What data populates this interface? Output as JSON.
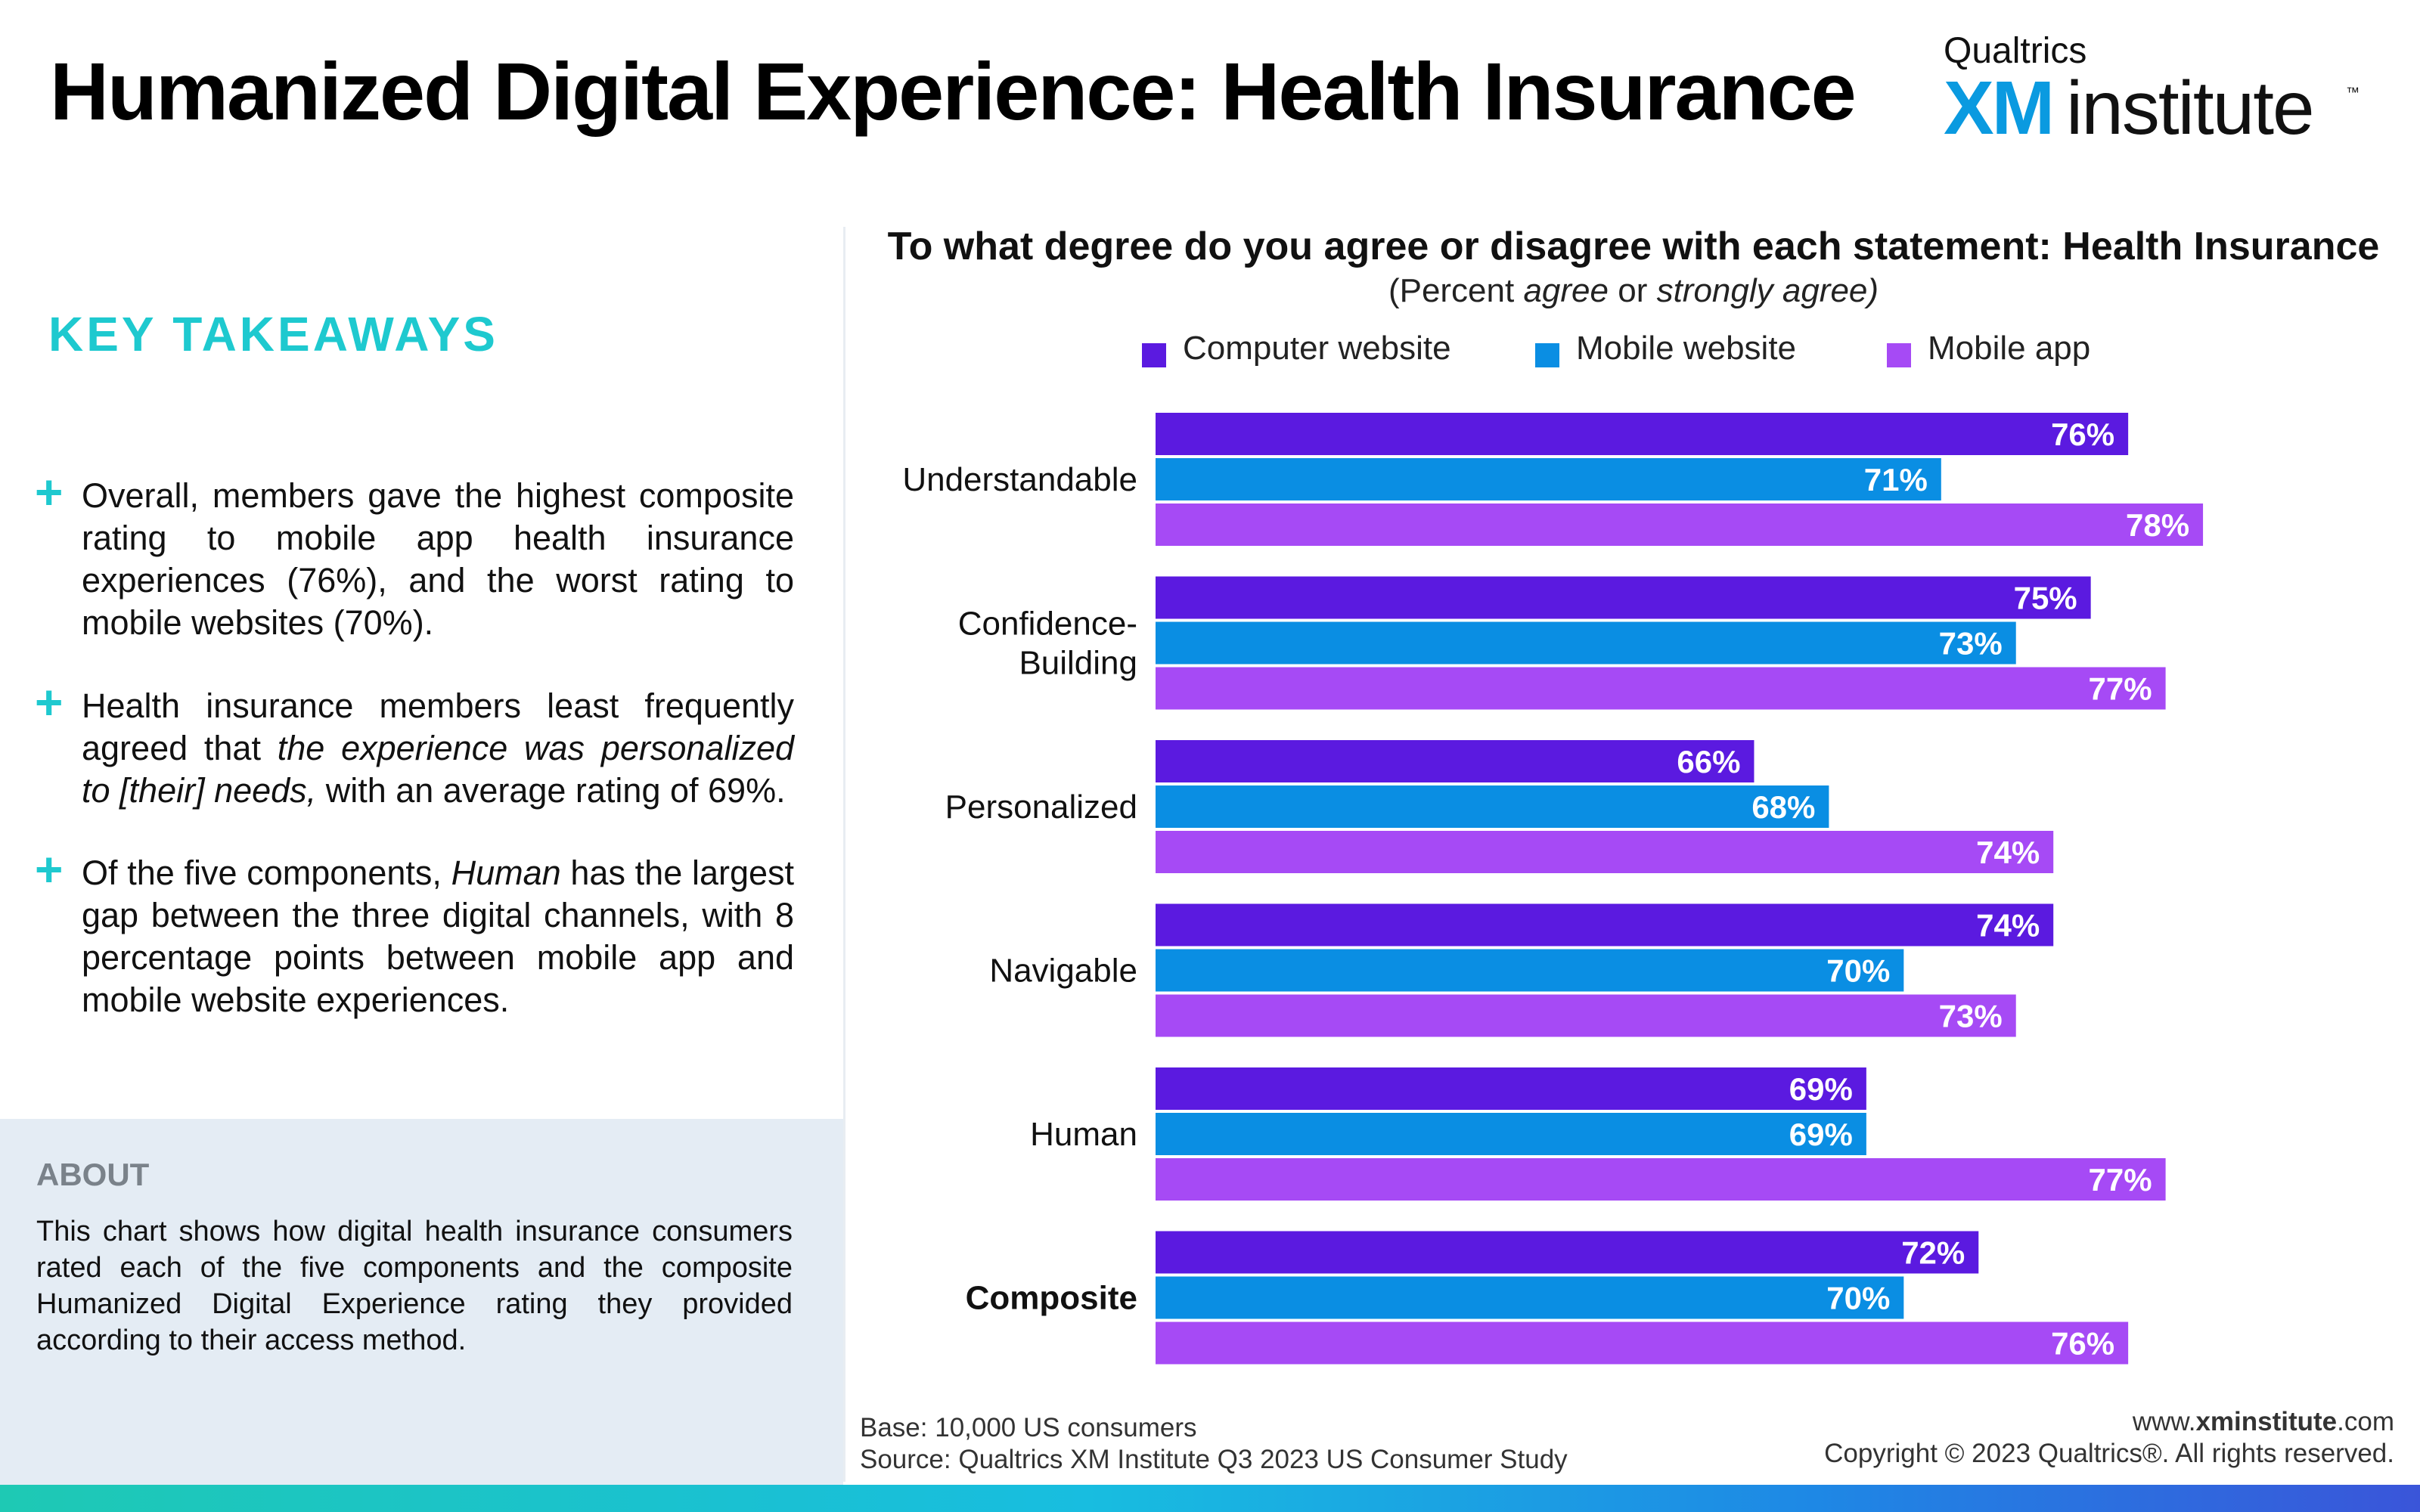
{
  "header": {
    "title": "Humanized Digital Experience: Health Insurance",
    "logo": {
      "brand": "Qualtrics",
      "xm": "XM",
      "institute": "institute",
      "tm": "™"
    }
  },
  "takeaways": {
    "heading": "KEY TAKEAWAYS",
    "items": [
      {
        "parts": [
          {
            "text": "Overall, members gave the highest composite rating to mobile app health insurance experiences (76%), and the worst rating to mobile websites (70%).",
            "italic": false
          }
        ]
      },
      {
        "parts": [
          {
            "text": "Health insurance members least frequently agreed that ",
            "italic": false
          },
          {
            "text": "the experience was personalized to [their] needs,",
            "italic": true
          },
          {
            "text": " with an average rating of 69%.",
            "italic": false
          }
        ]
      },
      {
        "parts": [
          {
            "text": "Of the five components, ",
            "italic": false
          },
          {
            "text": "Human",
            "italic": true
          },
          {
            "text": " has the largest gap between the three digital channels, with 8 percentage points between mobile app and mobile website experiences.",
            "italic": false
          }
        ]
      }
    ]
  },
  "about": {
    "heading": "ABOUT",
    "text": "This chart shows how digital health insurance consumers rated each of the five components and the composite Humanized Digital Experience rating they provided according to their access method."
  },
  "chart_data": {
    "type": "bar",
    "orientation": "horizontal",
    "title": "To what degree do you agree or disagree with each statement: Health Insurance",
    "subtitle_parts": [
      {
        "text": "(Percent ",
        "italic": false
      },
      {
        "text": "agree",
        "italic": true
      },
      {
        "text": " or ",
        "italic": false
      },
      {
        "text": "strongly agree)",
        "italic": true
      }
    ],
    "categories": [
      "Understandable",
      "Confidence-\nBuilding",
      "Personalized",
      "Navigable",
      "Human",
      "Composite"
    ],
    "bold_categories": [
      "Composite"
    ],
    "series": [
      {
        "name": "Computer website",
        "color": "#5b1ae0",
        "values": [
          76,
          75,
          66,
          74,
          69,
          72
        ]
      },
      {
        "name": "Mobile website",
        "color": "#0a8ee3",
        "values": [
          71,
          73,
          68,
          70,
          69,
          70
        ]
      },
      {
        "name": "Mobile app",
        "color": "#a64af5",
        "values": [
          78,
          77,
          74,
          73,
          77,
          76
        ]
      }
    ],
    "value_suffix": "%",
    "xlim": [
      50,
      80
    ],
    "grid": false,
    "legend_position": "top"
  },
  "footer": {
    "base": "Base: 10,000 US consumers",
    "source": "Source: Qualtrics XM Institute Q3 2023 US Consumer Study",
    "site_prefix": "www.",
    "site_bold": "xminstitute",
    "site_suffix": ".com",
    "copyright": "Copyright © 2023 Qualtrics®. All rights reserved."
  }
}
